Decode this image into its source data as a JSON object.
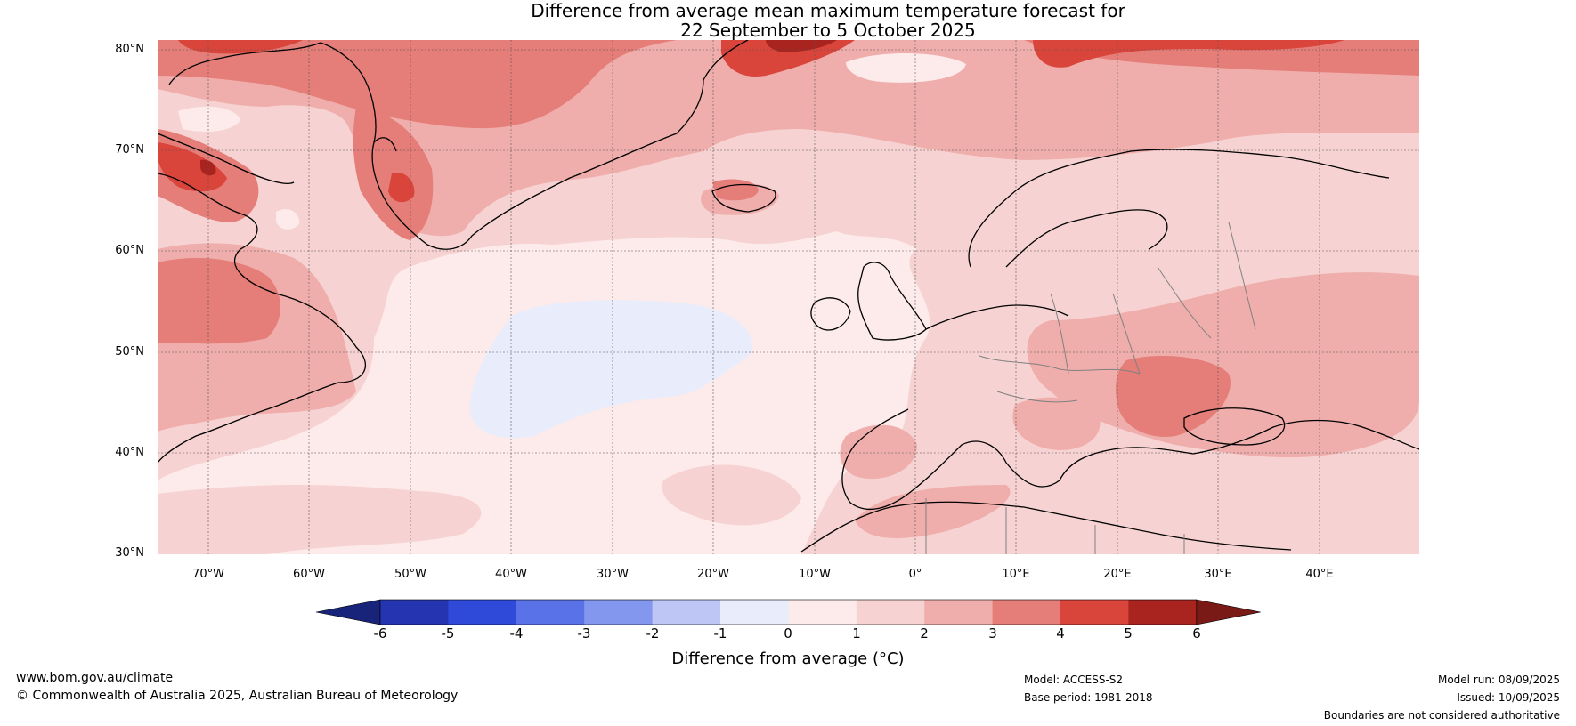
{
  "title_line1": "Difference from average mean maximum temperature forecast for",
  "title_line2": "22 September to 5 October 2025",
  "lat_labels": [
    "80°N",
    "70°N",
    "60°N",
    "50°N",
    "40°N",
    "30°N"
  ],
  "lon_labels": [
    "70°W",
    "60°W",
    "50°W",
    "40°W",
    "30°W",
    "20°W",
    "10°W",
    "0°",
    "10°E",
    "20°E",
    "30°E",
    "40°E"
  ],
  "colorbar": {
    "label": "Difference from average (°C)",
    "ticks": [
      "-6",
      "-5",
      "-4",
      "-3",
      "-2",
      "-1",
      "0",
      "1",
      "2",
      "3",
      "4",
      "5",
      "6"
    ],
    "colors": [
      "#17247a",
      "#2534b0",
      "#2f49d9",
      "#5a72e8",
      "#8497ee",
      "#bdc6f4",
      "#e8ecfb",
      "#fcebea",
      "#f6d3d2",
      "#efaeac",
      "#e57d78",
      "#d9443b",
      "#a9241f",
      "#7a1a17"
    ]
  },
  "footer": {
    "website": "www.bom.gov.au/climate",
    "copyright": "© Commonwealth of Australia 2025, Australian Bureau of Meteorology",
    "model": "Model: ACCESS-S2",
    "base_period": "Base period: 1981-2018",
    "model_run": "Model run: 08/09/2025",
    "issued": "Issued: 10/09/2025",
    "disclaimer": "Boundaries are not considered authoritative"
  }
}
